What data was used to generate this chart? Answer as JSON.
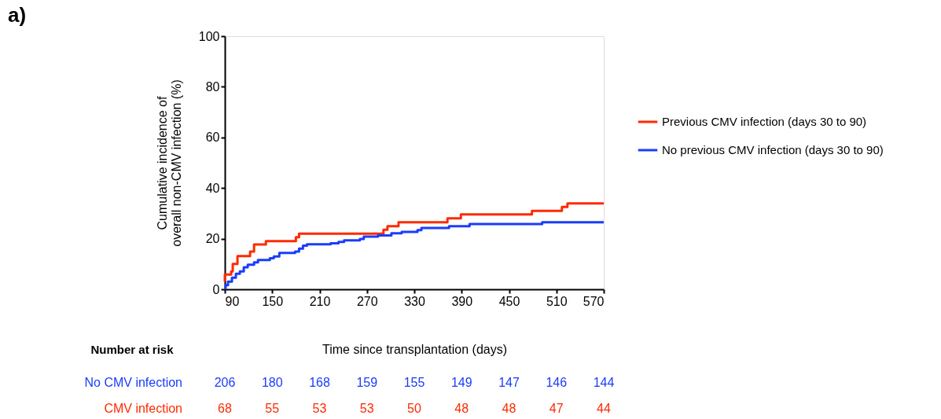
{
  "chart_data": {
    "type": "step",
    "xlabel": "Time since transplantation (days)",
    "ylabel": "Cumulative incidence of\noverall non-CMV infection (%)",
    "xlim": [
      90,
      570
    ],
    "xticks": [
      90,
      150,
      210,
      270,
      330,
      390,
      450,
      510,
      570
    ],
    "ylim": [
      0,
      100
    ],
    "yticks": [
      0,
      20,
      40,
      60,
      80,
      100
    ],
    "grid": false,
    "legend": "right",
    "series": [
      {
        "name": "Previous CMV infection (days 30 to 90)",
        "color": "#ff2a00",
        "x": [
          90,
          90,
          98,
          100,
          106,
          122,
          127,
          142,
          180,
          184,
          291,
          296,
          310,
          372,
          389,
          479,
          517,
          524,
          570
        ],
        "values": [
          3,
          5.8,
          7.1,
          10,
          13.1,
          14.9,
          17.7,
          19,
          20.6,
          22,
          23.5,
          24.9,
          26.5,
          28,
          29.6,
          31,
          32.5,
          33.9,
          33.9
        ]
      },
      {
        "name": "No previous CMV infection (days 30 to 90)",
        "color": "#1a3cff",
        "x": [
          90,
          91,
          94,
          99,
          104,
          109,
          114,
          119,
          127,
          132,
          147,
          152,
          159,
          179,
          184,
          189,
          194,
          224,
          234,
          241,
          261,
          266,
          284,
          301,
          314,
          334,
          339,
          374,
          400,
          492,
          570
        ],
        "values": [
          0.4,
          1.6,
          3.0,
          4.6,
          6.1,
          7.1,
          8.7,
          9.7,
          10.6,
          11.6,
          12.3,
          13,
          14.4,
          14.9,
          16.1,
          17.2,
          17.8,
          18.2,
          18.7,
          19.3,
          19.9,
          20.8,
          21.3,
          22.1,
          22.7,
          23.4,
          24.2,
          24.9,
          25.8,
          26.5,
          26.5
        ]
      }
    ],
    "annotations": [
      "a)",
      "Number at risk",
      "No CMV infection",
      "206",
      "180",
      "168",
      "159",
      "155",
      "149",
      "147",
      "146",
      "144",
      "CMV infection",
      "68",
      "55",
      "53",
      "53",
      "50",
      "48",
      "48",
      "47",
      "44"
    ]
  }
}
